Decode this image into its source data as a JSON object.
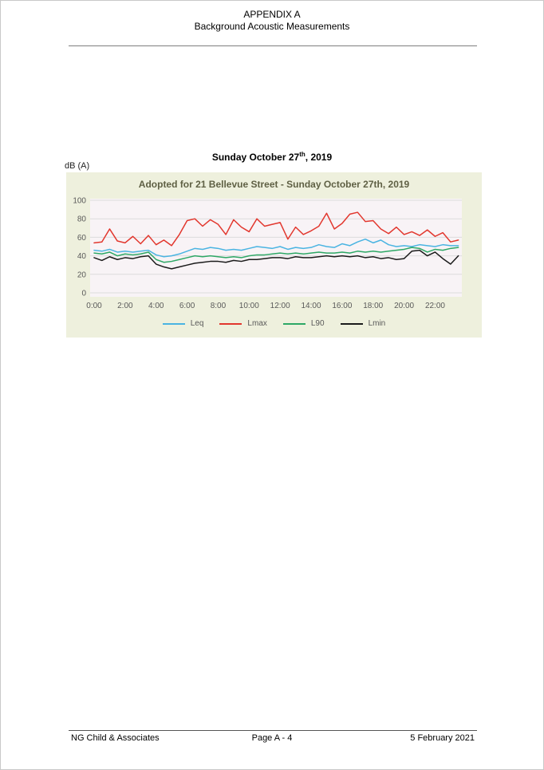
{
  "page": {
    "header": {
      "line1": "APPENDIX A",
      "line2": "Background Acoustic Measurements"
    },
    "section_title": {
      "prefix": "Sunday October 27",
      "superscript": "th",
      "suffix": ", 2019"
    },
    "y_axis_unit": "dB (A)",
    "footer": {
      "left": "NG Child & Associates",
      "center": "Page A - 4",
      "right": "5 February 2021"
    }
  },
  "chart_data": {
    "type": "line",
    "title": "Adopted for 21 Bellevue Street - Sunday October 27th, 2019",
    "title_color": "#5f6044",
    "xlabel": "",
    "ylabel": "dB (A)",
    "ylim": [
      0,
      100
    ],
    "y_ticks": [
      0,
      20,
      40,
      60,
      80,
      100
    ],
    "x_tick_labels": [
      "0:00",
      "2:00",
      "4:00",
      "6:00",
      "8:00",
      "10:00",
      "12:00",
      "14:00",
      "16:00",
      "18:00",
      "20:00",
      "22:00"
    ],
    "x_interval": "30 min",
    "grid": "horizontal",
    "legend_position": "bottom",
    "chart_bg": "#eef0dd",
    "plot_bg": "#f8f3f6",
    "grid_color": "#dcdcdc",
    "x": [
      "0:00",
      "0:30",
      "1:00",
      "1:30",
      "2:00",
      "2:30",
      "3:00",
      "3:30",
      "4:00",
      "4:30",
      "5:00",
      "5:30",
      "6:00",
      "6:30",
      "7:00",
      "7:30",
      "8:00",
      "8:30",
      "9:00",
      "9:30",
      "10:00",
      "10:30",
      "11:00",
      "11:30",
      "12:00",
      "12:30",
      "13:00",
      "13:30",
      "14:00",
      "14:30",
      "15:00",
      "15:30",
      "16:00",
      "16:30",
      "17:00",
      "17:30",
      "18:00",
      "18:30",
      "19:00",
      "19:30",
      "20:00",
      "20:30",
      "21:00",
      "21:30",
      "22:00",
      "22:30",
      "23:00",
      "23:30"
    ],
    "series": [
      {
        "name": "Leq",
        "color": "#4ab4e2",
        "values": [
          46,
          45,
          47,
          44,
          45,
          44,
          45,
          46,
          41,
          39,
          40,
          42,
          45,
          48,
          47,
          49,
          48,
          46,
          47,
          46,
          48,
          50,
          49,
          48,
          50,
          47,
          49,
          48,
          49,
          52,
          50,
          49,
          53,
          51,
          55,
          58,
          54,
          57,
          52,
          50,
          51,
          50,
          52,
          51,
          50,
          52,
          51,
          51
        ]
      },
      {
        "name": "Lmax",
        "color": "#e2372e",
        "values": [
          54,
          55,
          69,
          56,
          54,
          61,
          53,
          62,
          52,
          57,
          51,
          63,
          78,
          80,
          72,
          79,
          74,
          63,
          79,
          71,
          66,
          80,
          72,
          74,
          76,
          58,
          71,
          63,
          67,
          72,
          86,
          69,
          75,
          85,
          87,
          77,
          78,
          69,
          64,
          71,
          63,
          66,
          62,
          68,
          61,
          65,
          55,
          57
        ]
      },
      {
        "name": "L90",
        "color": "#2ea866",
        "values": [
          43,
          42,
          44,
          40,
          42,
          41,
          42,
          44,
          36,
          33,
          34,
          36,
          38,
          40,
          39,
          40,
          39,
          38,
          39,
          38,
          40,
          41,
          41,
          42,
          43,
          42,
          43,
          42,
          43,
          44,
          43,
          43,
          44,
          43,
          45,
          44,
          45,
          44,
          45,
          46,
          47,
          49,
          48,
          44,
          47,
          46,
          48,
          49
        ]
      },
      {
        "name": "Lmin",
        "color": "#1b1b1b",
        "values": [
          38,
          35,
          39,
          36,
          38,
          37,
          39,
          40,
          31,
          28,
          26,
          28,
          30,
          32,
          33,
          34,
          34,
          33,
          35,
          34,
          36,
          36,
          37,
          38,
          38,
          37,
          39,
          38,
          38,
          39,
          40,
          39,
          40,
          39,
          40,
          38,
          39,
          37,
          38,
          36,
          37,
          45,
          46,
          40,
          44,
          37,
          31,
          40
        ]
      }
    ]
  }
}
